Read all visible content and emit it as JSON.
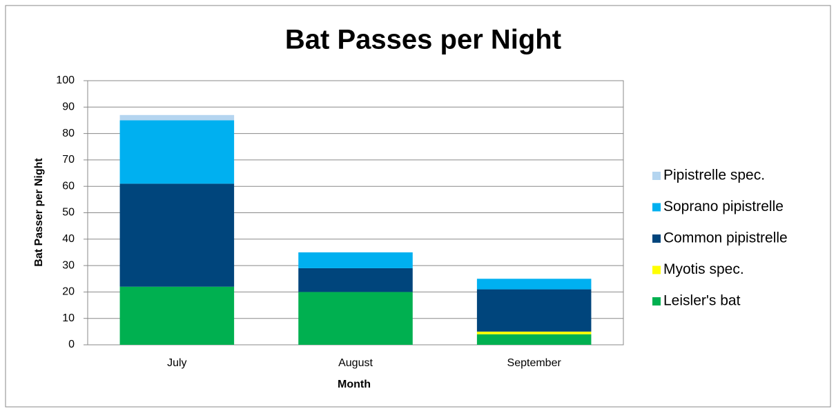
{
  "chart_data": {
    "type": "stacked_bar",
    "title": "Bat Passes per Night",
    "x_label": "Month",
    "y_label": "Bat Passer per Night",
    "categories": [
      "July",
      "August",
      "September"
    ],
    "series": [
      {
        "name": "Leisler's bat",
        "color": "#00b050",
        "values": [
          22,
          20,
          4
        ]
      },
      {
        "name": "Myotis spec.",
        "color": "#ffff00",
        "values": [
          0,
          0,
          1
        ]
      },
      {
        "name": "Common pipistrelle",
        "color": "#00457c",
        "values": [
          39,
          9,
          16
        ]
      },
      {
        "name": "Soprano pipistrelle",
        "color": "#00b0f0",
        "values": [
          24,
          6,
          4
        ]
      },
      {
        "name": "Pipistrelle spec.",
        "color": "#b4d5f0",
        "values": [
          2,
          0,
          0
        ]
      }
    ],
    "ylim": [
      0,
      100
    ],
    "yticks": [
      0,
      10,
      20,
      30,
      40,
      50,
      60,
      70,
      80,
      90,
      100
    ],
    "grid": true,
    "legend": "right"
  }
}
